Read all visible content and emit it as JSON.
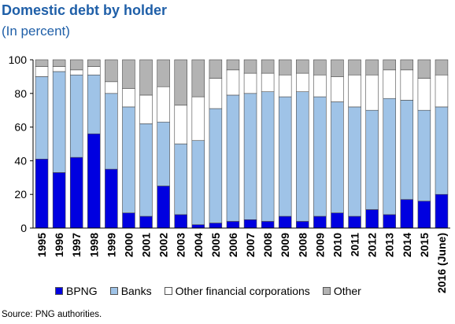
{
  "title": "Domestic debt by holder",
  "subtitle": "(In percent)",
  "source": "Source: PNG authorities.",
  "colors": {
    "bpng": "#0000e0",
    "banks": "#9fc3e7",
    "other_fin": "#ffffff",
    "other": "#b3b3b3",
    "title": "#1f5fa8"
  },
  "chart_data": {
    "type": "bar",
    "stacked": true,
    "title": "Domestic debt by holder",
    "ylabel": "(In percent)",
    "ylim": [
      0,
      100
    ],
    "yticks": [
      0,
      20,
      40,
      60,
      80,
      100
    ],
    "grid": false,
    "legend_position": "bottom",
    "categories": [
      "1995",
      "1996",
      "1997",
      "1998",
      "1999",
      "2000",
      "2001",
      "2002",
      "2003",
      "2004",
      "2005",
      "2006",
      "2007",
      "2008",
      "2009",
      "2008",
      "2009",
      "2010",
      "2011",
      "2012",
      "2013",
      "2014",
      "2015",
      "2016 (June)"
    ],
    "series": [
      {
        "name": "BPNG",
        "values": [
          41,
          33,
          42,
          56,
          35,
          9,
          7,
          25,
          8,
          2,
          3,
          4,
          5,
          4,
          7,
          4,
          7,
          9,
          7,
          11,
          8,
          17,
          16,
          20
        ]
      },
      {
        "name": "Banks",
        "values": [
          49,
          60,
          49,
          35,
          45,
          63,
          55,
          38,
          42,
          50,
          68,
          75,
          75,
          77,
          71,
          77,
          71,
          66,
          65,
          59,
          69,
          59,
          54,
          52
        ]
      },
      {
        "name": "Other financial corporations",
        "values": [
          6,
          3,
          3,
          5,
          7,
          11,
          17,
          21,
          23,
          26,
          18,
          15,
          12,
          11,
          13,
          11,
          13,
          15,
          19,
          21,
          17,
          18,
          19,
          19
        ]
      },
      {
        "name": "Other",
        "values": [
          4,
          4,
          6,
          4,
          13,
          17,
          21,
          16,
          27,
          22,
          11,
          6,
          8,
          8,
          9,
          8,
          9,
          10,
          9,
          9,
          6,
          6,
          11,
          9
        ]
      }
    ]
  }
}
